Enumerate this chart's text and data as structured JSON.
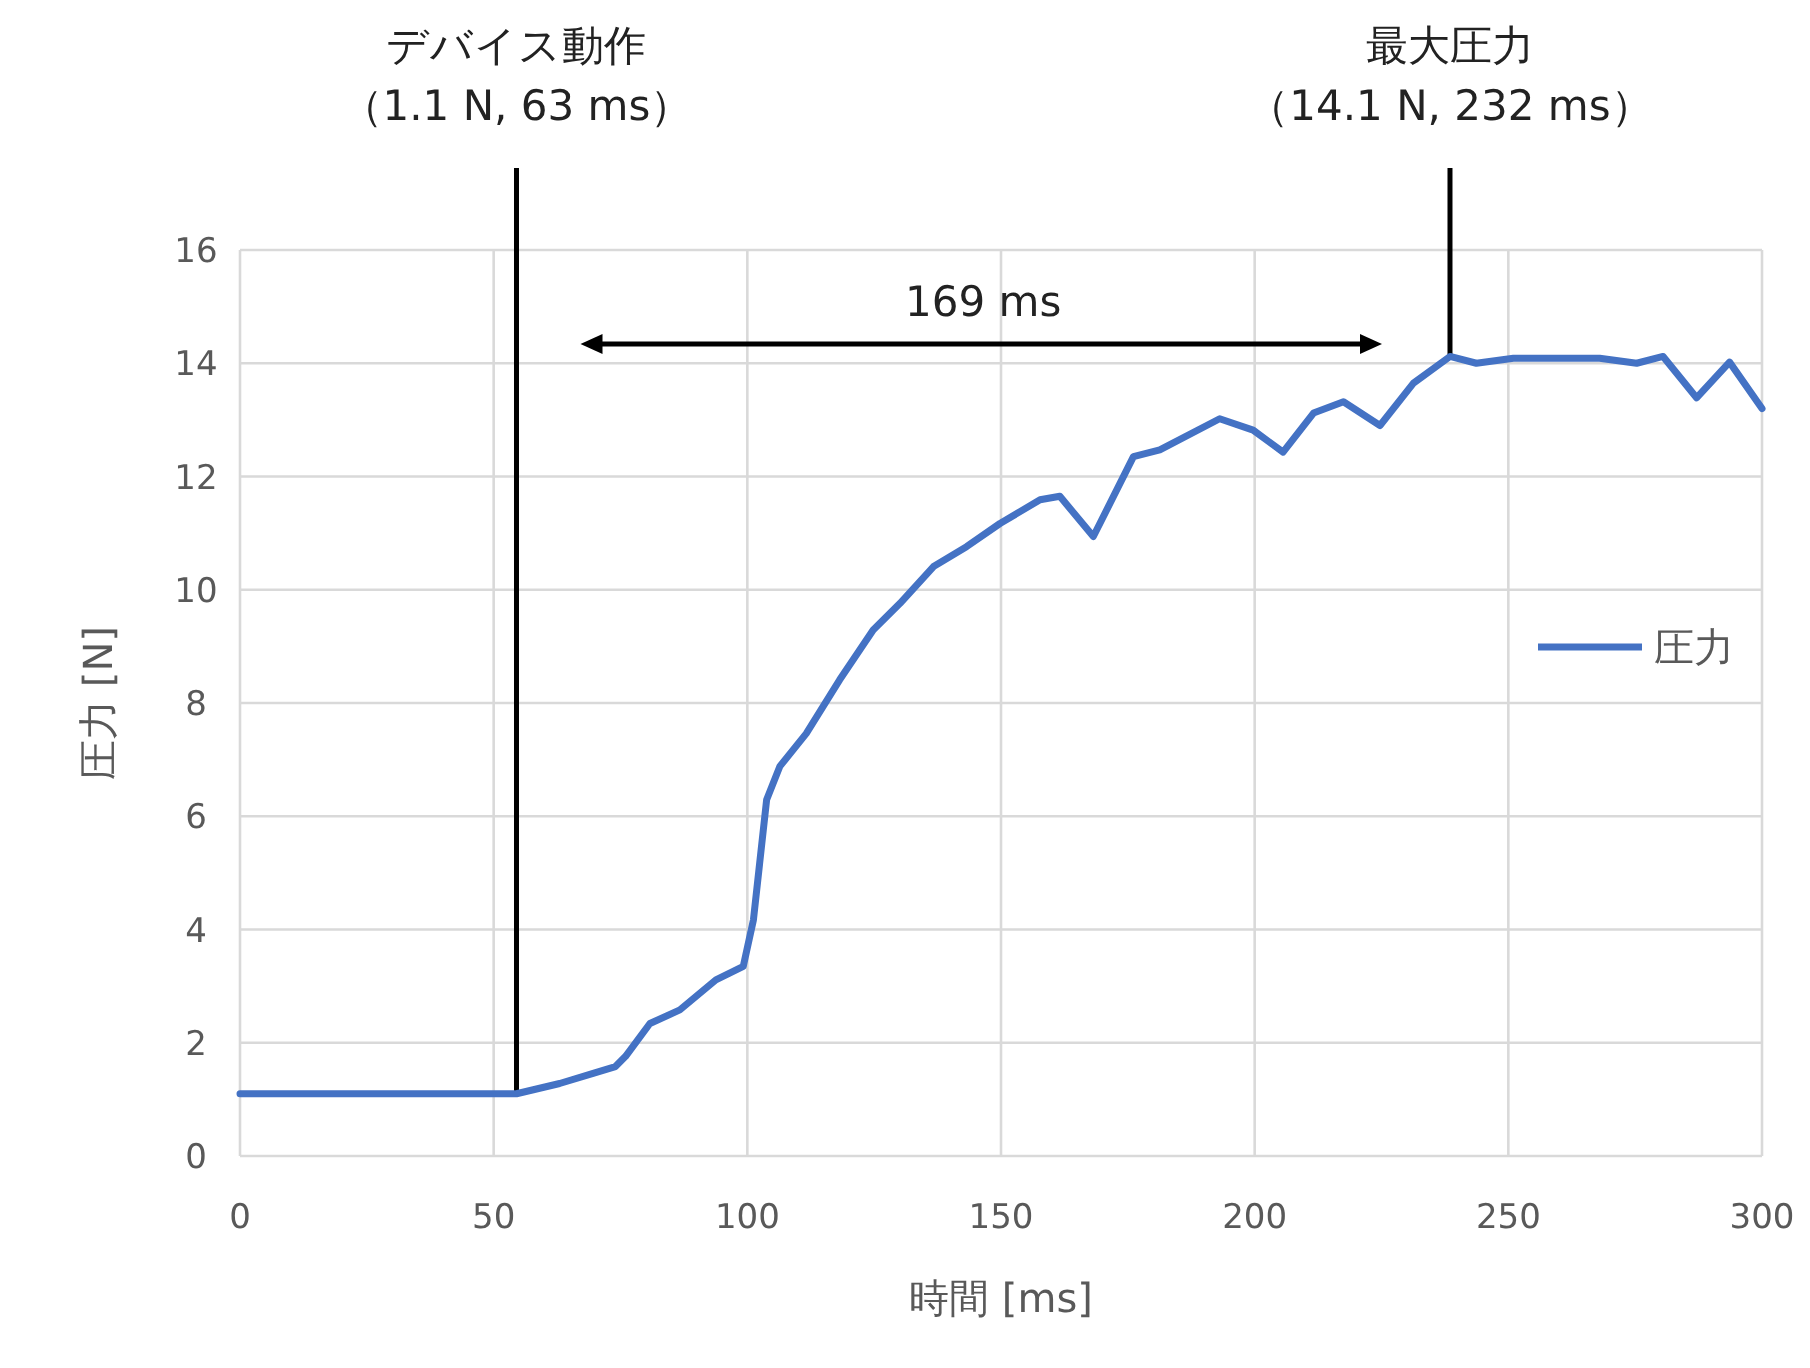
{
  "chart_data": {
    "type": "line",
    "xlabel": "時間 [ms]",
    "ylabel": "圧力 [N]",
    "xlim": [
      0,
      300
    ],
    "xticks": [
      0,
      50,
      100,
      150,
      200,
      250,
      300
    ],
    "ylim": [
      0,
      16
    ],
    "yticks": [
      0,
      2,
      4,
      6,
      8,
      10,
      12,
      14,
      16
    ],
    "grid": true,
    "legend": "right",
    "series": [
      {
        "name": "圧力",
        "color": "#4472c4",
        "x": [
          0,
          54.5,
          63,
          69.6,
          74,
          76,
          80.8,
          86.7,
          93.8,
          99.2,
          101.2,
          103.8,
          106.4,
          111.6,
          118.2,
          124.8,
          130.1,
          136.7,
          143.2,
          149.8,
          157.7,
          161.6,
          168.2,
          176.1,
          181.3,
          193.1,
          199.7,
          205.6,
          211.6,
          217.5,
          224.7,
          231.3,
          238.5,
          243.7,
          251,
          268,
          275.3,
          280.5,
          287.1,
          293.6,
          300
        ],
        "values": [
          1.1,
          1.1,
          1.28,
          1.46,
          1.58,
          1.76,
          2.34,
          2.58,
          3.11,
          3.35,
          4.17,
          6.29,
          6.88,
          7.46,
          8.41,
          9.29,
          9.76,
          10.41,
          10.76,
          11.17,
          11.59,
          11.65,
          10.94,
          12.35,
          12.47,
          13.02,
          12.82,
          12.43,
          13.12,
          13.32,
          12.9,
          13.65,
          14.12,
          14.0,
          14.09,
          14.09,
          14.0,
          14.12,
          13.39,
          14.02,
          13.2
        ]
      }
    ],
    "ref_lines": [
      {
        "axis": "x",
        "value": 54.5,
        "label": "デバイス動作",
        "color": "#000000"
      },
      {
        "axis": "x",
        "value": 238.5,
        "label": "最大圧力",
        "color": "#000000"
      }
    ],
    "annotations": [
      "169 ms",
      "（1.1 N, 63 ms）",
      "（14.1 N, 232 ms）"
    ]
  }
}
